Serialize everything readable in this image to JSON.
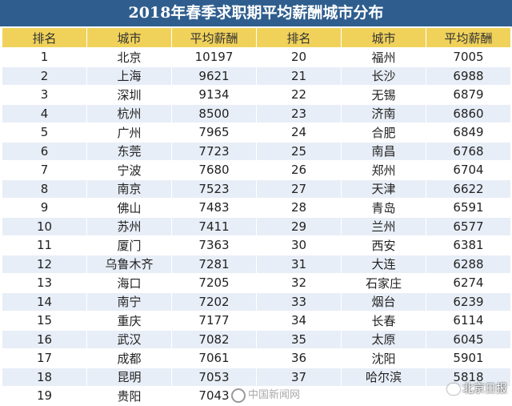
{
  "title": "2018年春季求职期平均薪酬城市分布",
  "headers": {
    "rank": "排名",
    "city": "城市",
    "salary": "平均薪酬",
    "rank2": "排名",
    "city2": "城市",
    "salary2": "平均薪酬"
  },
  "rows": [
    {
      "r1": "1",
      "c1": "北京",
      "s1": "10197",
      "r2": "20",
      "c2": "福州",
      "s2": "7005"
    },
    {
      "r1": "2",
      "c1": "上海",
      "s1": "9621",
      "r2": "21",
      "c2": "长沙",
      "s2": "6988"
    },
    {
      "r1": "3",
      "c1": "深圳",
      "s1": "9134",
      "r2": "22",
      "c2": "无锡",
      "s2": "6879"
    },
    {
      "r1": "4",
      "c1": "杭州",
      "s1": "8500",
      "r2": "23",
      "c2": "济南",
      "s2": "6860"
    },
    {
      "r1": "5",
      "c1": "广州",
      "s1": "7965",
      "r2": "24",
      "c2": "合肥",
      "s2": "6849"
    },
    {
      "r1": "6",
      "c1": "东莞",
      "s1": "7723",
      "r2": "25",
      "c2": "南昌",
      "s2": "6768"
    },
    {
      "r1": "7",
      "c1": "宁波",
      "s1": "7680",
      "r2": "26",
      "c2": "郑州",
      "s2": "6704"
    },
    {
      "r1": "8",
      "c1": "南京",
      "s1": "7523",
      "r2": "27",
      "c2": "天津",
      "s2": "6622"
    },
    {
      "r1": "9",
      "c1": "佛山",
      "s1": "7483",
      "r2": "28",
      "c2": "青岛",
      "s2": "6591"
    },
    {
      "r1": "10",
      "c1": "苏州",
      "s1": "7411",
      "r2": "29",
      "c2": "兰州",
      "s2": "6577"
    },
    {
      "r1": "11",
      "c1": "厦门",
      "s1": "7363",
      "r2": "30",
      "c2": "西安",
      "s2": "6381"
    },
    {
      "r1": "12",
      "c1": "乌鲁木齐",
      "s1": "7281",
      "r2": "31",
      "c2": "大连",
      "s2": "6288"
    },
    {
      "r1": "13",
      "c1": "海口",
      "s1": "7205",
      "r2": "32",
      "c2": "石家庄",
      "s2": "6274"
    },
    {
      "r1": "14",
      "c1": "南宁",
      "s1": "7202",
      "r2": "33",
      "c2": "烟台",
      "s2": "6239"
    },
    {
      "r1": "15",
      "c1": "重庆",
      "s1": "7177",
      "r2": "34",
      "c2": "长春",
      "s2": "6114"
    },
    {
      "r1": "16",
      "c1": "武汉",
      "s1": "7082",
      "r2": "35",
      "c2": "太原",
      "s2": "6045"
    },
    {
      "r1": "17",
      "c1": "成都",
      "s1": "7061",
      "r2": "36",
      "c2": "沈阳",
      "s2": "5901"
    },
    {
      "r1": "18",
      "c1": "昆明",
      "s1": "7053",
      "r2": "37",
      "c2": "哈尔滨",
      "s2": "5818"
    },
    {
      "r1": "19",
      "c1": "贵阳",
      "s1": "7043",
      "r2": "",
      "c2": "",
      "s2": ""
    }
  ],
  "watermarks": {
    "chinanews": "中国新闻网",
    "bjdaily": "北京日报"
  }
}
